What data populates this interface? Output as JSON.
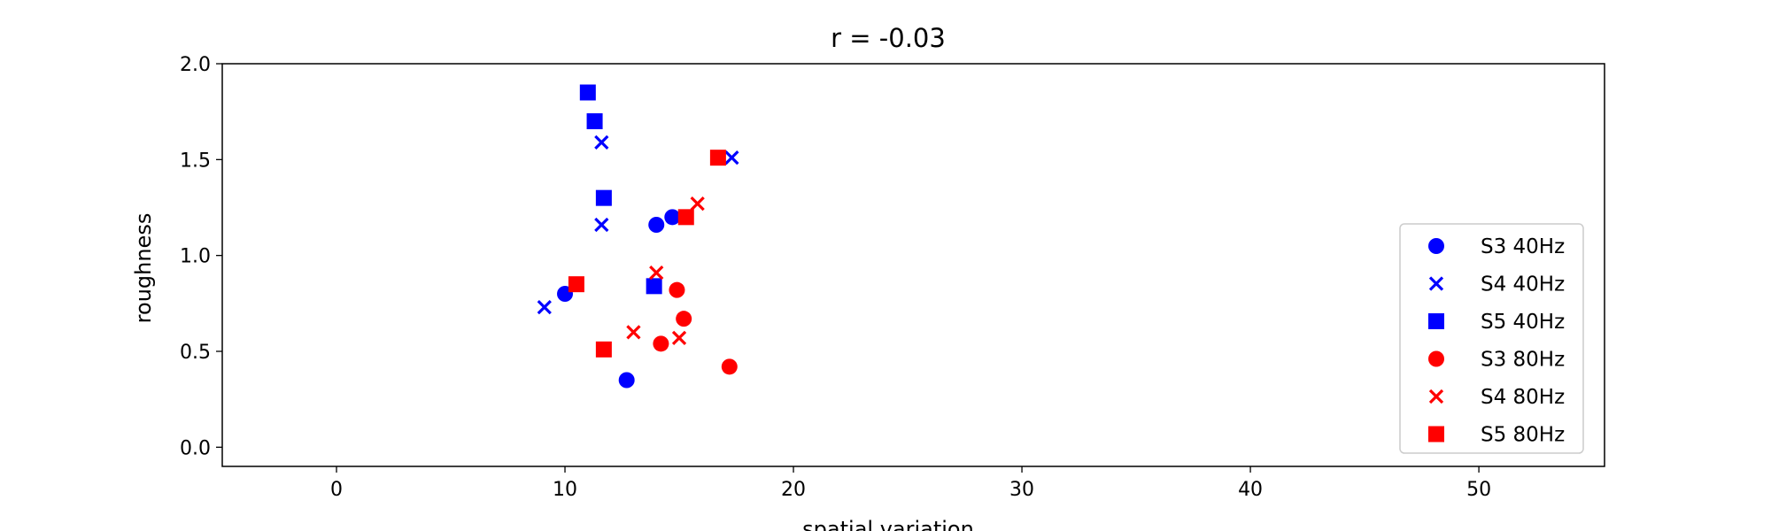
{
  "chart_data": {
    "type": "scatter",
    "title": "r = -0.03",
    "xlabel": "spatial variation",
    "ylabel": "roughness",
    "xlim": [
      -5,
      55.5
    ],
    "ylim": [
      -0.1,
      2.0
    ],
    "xticks": [
      0,
      10,
      20,
      30,
      40,
      50
    ],
    "yticks": [
      0.0,
      0.5,
      1.0,
      1.5,
      2.0
    ],
    "xtick_labels": [
      "0",
      "10",
      "20",
      "30",
      "40",
      "50"
    ],
    "ytick_labels": [
      "0.0",
      "0.5",
      "1.0",
      "1.5",
      "2.0"
    ],
    "grid": false,
    "legend_position": "lower-right",
    "series": [
      {
        "name": "S3 40Hz",
        "marker": "circle",
        "color": "#0000ff",
        "points": [
          [
            10.0,
            0.8
          ],
          [
            12.7,
            0.35
          ],
          [
            14.0,
            1.16
          ],
          [
            14.7,
            1.2
          ]
        ]
      },
      {
        "name": "S4 40Hz",
        "marker": "x",
        "color": "#0000ff",
        "points": [
          [
            9.1,
            0.73
          ],
          [
            11.6,
            1.59
          ],
          [
            11.6,
            1.16
          ],
          [
            17.3,
            1.51
          ]
        ]
      },
      {
        "name": "S5 40Hz",
        "marker": "square",
        "color": "#0000ff",
        "points": [
          [
            11.0,
            1.85
          ],
          [
            11.3,
            1.7
          ],
          [
            11.7,
            1.3
          ],
          [
            13.9,
            0.84
          ]
        ]
      },
      {
        "name": "S3 80Hz",
        "marker": "circle",
        "color": "#ff0000",
        "points": [
          [
            14.2,
            0.54
          ],
          [
            14.9,
            0.82
          ],
          [
            15.2,
            0.67
          ],
          [
            17.2,
            0.42
          ]
        ]
      },
      {
        "name": "S4 80Hz",
        "marker": "x",
        "color": "#ff0000",
        "points": [
          [
            13.0,
            0.6
          ],
          [
            14.0,
            0.91
          ],
          [
            15.0,
            0.57
          ],
          [
            15.8,
            1.27
          ]
        ]
      },
      {
        "name": "S5 80Hz",
        "marker": "square",
        "color": "#ff0000",
        "points": [
          [
            10.5,
            0.85
          ],
          [
            11.7,
            0.51
          ],
          [
            15.3,
            1.2
          ],
          [
            16.7,
            1.51
          ]
        ]
      }
    ]
  }
}
